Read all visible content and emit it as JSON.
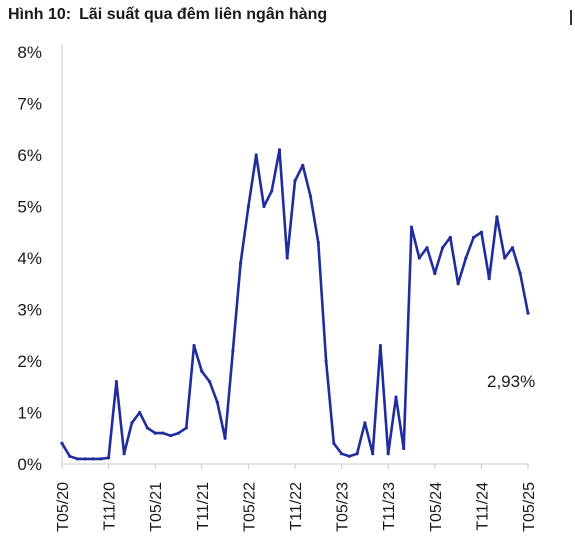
{
  "figure_label": "Hình 10:",
  "title": "Lãi suất qua đêm liên ngân hàng",
  "chart_data": {
    "type": "line",
    "title": "Lãi suất qua đêm liên ngân hàng",
    "xlabel": "",
    "ylabel": "",
    "ylim": [
      0,
      8
    ],
    "y_ticks": [
      "0%",
      "1%",
      "2%",
      "3%",
      "4%",
      "5%",
      "6%",
      "7%",
      "8%"
    ],
    "x_ticks": [
      "T05/20",
      "T11/20",
      "T05/21",
      "T11/21",
      "T05/22",
      "T11/22",
      "T05/23",
      "T11/23",
      "T05/24",
      "T11/24",
      "T05/25"
    ],
    "line_color": "#1f2d9e",
    "grid": false,
    "series": [
      {
        "x": [
          "2020-05",
          "2020-06",
          "2020-07",
          "2020-08",
          "2020-09",
          "2020-10",
          "2020-11",
          "2020-12",
          "2021-01",
          "2021-02",
          "2021-03",
          "2021-04",
          "2021-05",
          "2021-06",
          "2021-07",
          "2021-08",
          "2021-09",
          "2021-10",
          "2021-11",
          "2021-12",
          "2022-01",
          "2022-02",
          "2022-03",
          "2022-04",
          "2022-05",
          "2022-06",
          "2022-07",
          "2022-08",
          "2022-09",
          "2022-10",
          "2022-11",
          "2022-12",
          "2023-01",
          "2023-02",
          "2023-03",
          "2023-04",
          "2023-05",
          "2023-06",
          "2023-07",
          "2023-08",
          "2023-09",
          "2023-10",
          "2023-11",
          "2023-12",
          "2024-01",
          "2024-02",
          "2024-03",
          "2024-04",
          "2024-05",
          "2024-06",
          "2024-07",
          "2024-08",
          "2024-09",
          "2024-10",
          "2024-11",
          "2024-12",
          "2025-01",
          "2025-02",
          "2025-03",
          "2025-04",
          "2025-05"
        ],
        "values": [
          0.4,
          0.15,
          0.1,
          0.1,
          0.1,
          0.1,
          0.12,
          1.6,
          0.2,
          0.8,
          1.0,
          0.7,
          0.6,
          0.6,
          0.55,
          0.6,
          0.7,
          2.3,
          1.8,
          1.6,
          1.2,
          0.5,
          2.2,
          3.9,
          5.0,
          6.0,
          5.0,
          5.3,
          6.1,
          4.0,
          5.5,
          5.8,
          5.2,
          4.3,
          2.0,
          0.4,
          0.2,
          0.15,
          0.2,
          0.8,
          0.2,
          2.3,
          0.2,
          1.3,
          0.3,
          4.6,
          4.0,
          4.2,
          3.7,
          4.2,
          4.4,
          3.5,
          4.0,
          4.4,
          4.5,
          3.6,
          4.8,
          4.0,
          4.2,
          3.7,
          2.93
        ]
      }
    ],
    "annotation": "2,93%"
  }
}
